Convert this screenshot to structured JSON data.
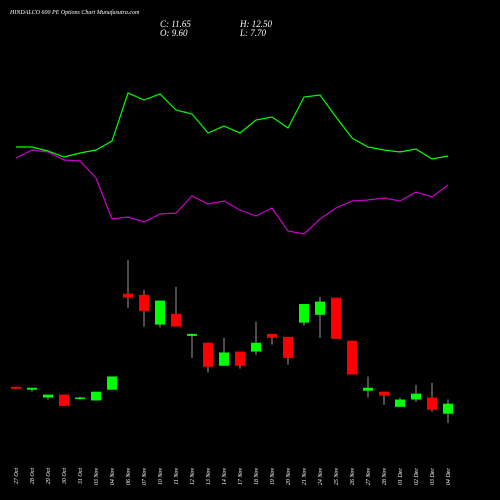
{
  "chart_data": {
    "type": "candlestick",
    "title": "HINDALCO 600 PE Options Chart Munafasutra.com",
    "ohlc_labels": [
      {
        "value": 11.65,
        "label": "C: 11.65"
      },
      {
        "value": 12.5,
        "label": "H: 12.50"
      },
      {
        "value": 9.6,
        "label": "O: 9.60"
      },
      {
        "value": 7.7,
        "label": "L: 7.70"
      }
    ],
    "categories": [
      "27 Oct",
      "28 Oct",
      "29 Oct",
      "30 Oct",
      "31 Oct",
      "03 Nov",
      "04 Nov",
      "06 Nov",
      "07 Nov",
      "10 Nov",
      "11 Nov",
      "12 Nov",
      "13 Nov",
      "14 Nov",
      "17 Nov",
      "18 Nov",
      "19 Nov",
      "20 Nov",
      "21 Nov",
      "24 Nov",
      "25 Nov",
      "26 Nov",
      "27 Nov",
      "28 Nov",
      "01 Dec",
      "02 Dec",
      "03 Dec",
      "04 Dec"
    ],
    "open": [
      15.1,
      14.5,
      12.9,
      13.5,
      12.7,
      12.3,
      14.5,
      34.1,
      33.9,
      27.8,
      30.0,
      25.5,
      24.1,
      19.4,
      22.3,
      22.3,
      25.9,
      25.3,
      28.2,
      29.8,
      33.3,
      24.5,
      14.3,
      14.1,
      11.0,
      12.5,
      12.9,
      9.6
    ],
    "high": [
      15.1,
      14.9,
      13.5,
      13.5,
      13.1,
      14.1,
      17.2,
      41.0,
      34.9,
      32.7,
      35.5,
      25.9,
      24.1,
      25.1,
      22.3,
      28.4,
      25.9,
      25.3,
      32.0,
      33.5,
      33.3,
      24.5,
      17.2,
      14.1,
      12.9,
      15.5,
      15.9,
      12.5
    ],
    "low": [
      14.7,
      14.1,
      12.5,
      11.2,
      12.5,
      12.3,
      14.5,
      31.2,
      27.4,
      27.2,
      27.4,
      21.0,
      18.0,
      19.4,
      18.8,
      21.6,
      23.7,
      19.6,
      27.6,
      25.1,
      24.9,
      17.6,
      12.9,
      11.4,
      11.0,
      12.0,
      10.0,
      7.7
    ],
    "close": [
      14.7,
      14.9,
      13.5,
      11.2,
      12.9,
      14.1,
      17.2,
      33.3,
      30.6,
      32.7,
      27.4,
      25.9,
      19.2,
      22.1,
      19.4,
      24.1,
      25.1,
      21.0,
      32.0,
      32.5,
      24.9,
      17.6,
      14.9,
      13.3,
      12.5,
      13.7,
      10.4,
      11.65
    ],
    "up_color": "#00ff00",
    "down_color": "#ff0000",
    "lines": [
      {
        "color": "#00ff00",
        "values": [
          103,
          103,
          99,
          93,
          97,
          100,
          109,
          157,
          150,
          156,
          140,
          136,
          117,
          124,
          117,
          130,
          133,
          122,
          153,
          155,
          133,
          112,
          103,
          100,
          98,
          101,
          91,
          94
        ]
      },
      {
        "color": "#cc00cc",
        "values": [
          92,
          100,
          98,
          90,
          89,
          72,
          31,
          33,
          28,
          36,
          37,
          54,
          46,
          49,
          40,
          34,
          42,
          19,
          16,
          31,
          42,
          49,
          50,
          52,
          49,
          58,
          53,
          65
        ]
      }
    ]
  }
}
